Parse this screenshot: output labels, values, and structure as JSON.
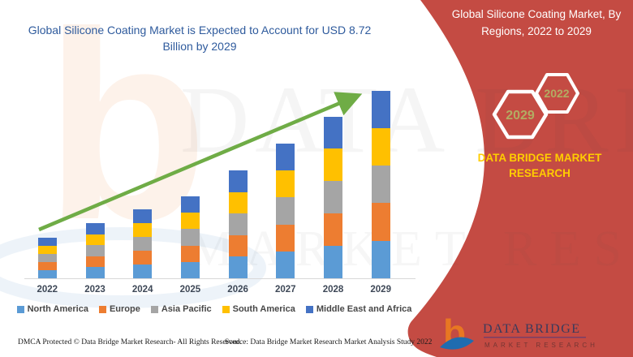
{
  "header": {
    "title": "Global Silicone Coating Market is Expected to Account for USD 8.72 Billion by 2029"
  },
  "sidebar": {
    "title": "Global Silicone Coating Market, By Regions, 2022 to 2029",
    "hexagons": [
      {
        "label": "2029"
      },
      {
        "label": "2022"
      }
    ],
    "brand": "DATA BRIDGE MARKET RESEARCH",
    "logo": {
      "name": "DATA BRIDGE",
      "subtext": "MARKET RESEARCH",
      "monogram": "b"
    }
  },
  "watermark": {
    "line1": "DATA BRIDGE",
    "line2": "MARKET RESEARCH",
    "monogram": "b"
  },
  "footer": {
    "left": "DMCA Protected © Data Bridge Market Research- All Rights Reserved.",
    "right": "Source: Data Bridge Market Research Market Analysis Study 2022"
  },
  "chart_data": {
    "type": "bar",
    "stacked": true,
    "title": "Global Silicone Coating Market is Expected to Account for USD 8.72 Billion by 2029",
    "units": "USD Billion",
    "categories": [
      "2022",
      "2023",
      "2024",
      "2025",
      "2026",
      "2027",
      "2028",
      "2029"
    ],
    "series": [
      {
        "name": "North America",
        "color": "#5B9BD5",
        "values": [
          0.38,
          0.51,
          0.64,
          0.76,
          1.0,
          1.25,
          1.5,
          1.74
        ]
      },
      {
        "name": "Europe",
        "color": "#ED7D31",
        "values": [
          0.38,
          0.51,
          0.64,
          0.76,
          1.0,
          1.25,
          1.5,
          1.74
        ]
      },
      {
        "name": "Asia Pacific",
        "color": "#A5A5A5",
        "values": [
          0.38,
          0.51,
          0.64,
          0.76,
          1.0,
          1.25,
          1.5,
          1.74
        ]
      },
      {
        "name": "South America",
        "color": "#FFC000",
        "values": [
          0.38,
          0.51,
          0.64,
          0.76,
          1.0,
          1.25,
          1.5,
          1.74
        ]
      },
      {
        "name": "Middle East and Africa",
        "color": "#4472C4",
        "values": [
          0.38,
          0.51,
          0.64,
          0.76,
          1.0,
          1.25,
          1.5,
          1.74
        ]
      }
    ],
    "estimated_totals_usd_bn": [
      1.88,
      2.56,
      3.2,
      3.8,
      5.0,
      6.27,
      7.48,
      8.72
    ],
    "final_value_label": "USD 8.72 Billion by 2029",
    "trendline": {
      "present": true,
      "style": "arrow",
      "color": "#6FAC46"
    },
    "legend_position": "bottom",
    "value_axis_hidden": true,
    "xlabel": "",
    "ylabel": ""
  },
  "colors": {
    "sidebar_red": "#C44B43",
    "title_blue": "#2F5B9D",
    "brand_yellow": "#FFCD00",
    "hexagon_year": "#B2AC62",
    "arrow_green": "#6FAC46",
    "axis_gray": "#D8D8D8"
  }
}
